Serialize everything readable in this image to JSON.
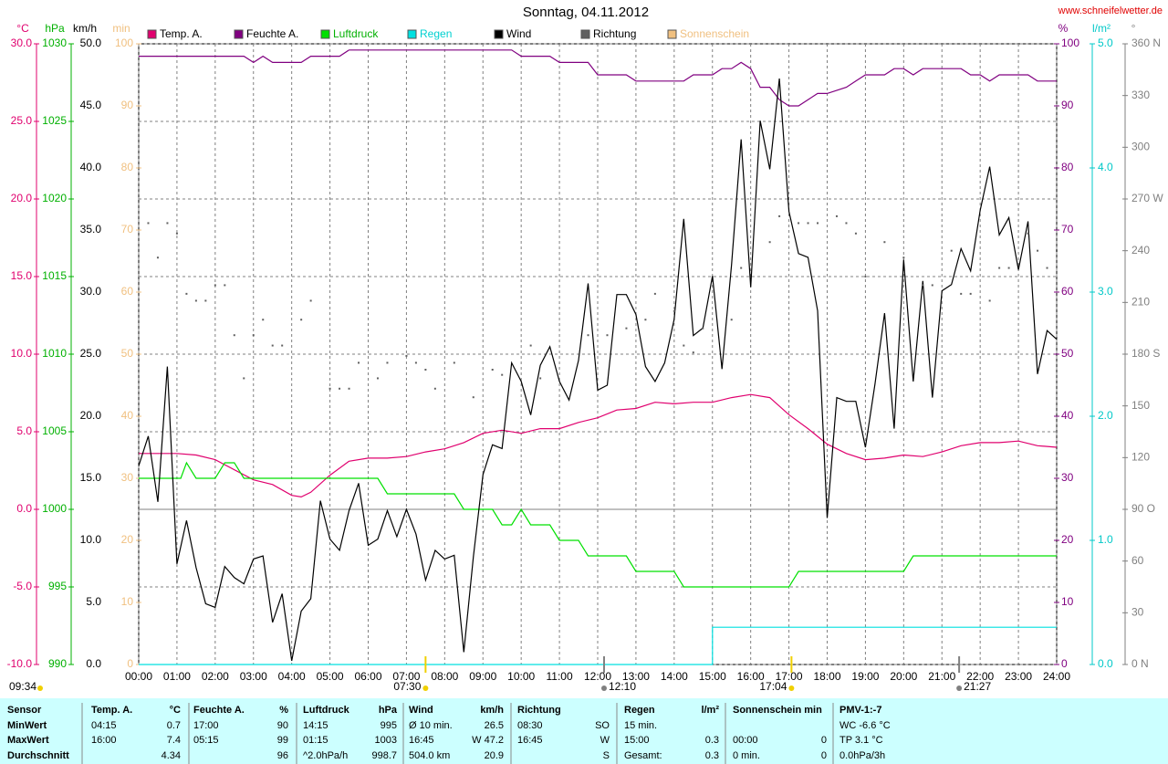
{
  "chart_data": {
    "type": "line",
    "title": "Sonntag, 04.11.2012",
    "source": "www.schneifelwetter.de",
    "xlim": [
      0,
      24
    ],
    "xticks": [
      {
        "value": 0,
        "label": "00:00"
      },
      {
        "value": 1,
        "label": "01:00"
      },
      {
        "value": 2,
        "label": "02:00"
      },
      {
        "value": 3,
        "label": "03:00"
      },
      {
        "value": 4,
        "label": "04:00"
      },
      {
        "value": 5,
        "label": "05:00"
      },
      {
        "value": 6,
        "label": "06:00"
      },
      {
        "value": 7,
        "label": "07:00"
      },
      {
        "value": 8,
        "label": "08:00"
      },
      {
        "value": 9,
        "label": "09:00"
      },
      {
        "value": 10,
        "label": "10:00"
      },
      {
        "value": 11,
        "label": "11:00"
      },
      {
        "value": 12,
        "label": "12:00"
      },
      {
        "value": 13,
        "label": "13:00"
      },
      {
        "value": 14,
        "label": "14:00"
      },
      {
        "value": 15,
        "label": "15:00"
      },
      {
        "value": 16,
        "label": "16:00"
      },
      {
        "value": 17,
        "label": "17:00"
      },
      {
        "value": 18,
        "label": "18:00"
      },
      {
        "value": 19,
        "label": "19:00"
      },
      {
        "value": 20,
        "label": "20:00"
      },
      {
        "value": 21,
        "label": "21:00"
      },
      {
        "value": 22,
        "label": "22:00"
      },
      {
        "value": 23,
        "label": "23:00"
      },
      {
        "value": 24,
        "label": "24:00"
      }
    ],
    "grid": true,
    "axes": {
      "temp": {
        "unit": "°C",
        "color": "#e0006e",
        "ylim": [
          -10,
          30
        ],
        "yticks": [
          {
            "value": -10,
            "label": "-10.0"
          },
          {
            "value": -5,
            "label": "-5.0"
          },
          {
            "value": 0,
            "label": "0.0"
          },
          {
            "value": 5,
            "label": "5.0"
          },
          {
            "value": 10,
            "label": "10.0"
          },
          {
            "value": 15,
            "label": "15.0"
          },
          {
            "value": 20,
            "label": "20.0"
          },
          {
            "value": 25,
            "label": "25.0"
          },
          {
            "value": 30,
            "label": "30.0"
          }
        ]
      },
      "hpa": {
        "unit": "hPa",
        "color": "#00b000",
        "ylim": [
          990,
          1030
        ],
        "yticks": [
          990,
          995,
          1000,
          1005,
          1010,
          1015,
          1020,
          1025,
          1030
        ]
      },
      "kmh": {
        "unit": "km/h",
        "color": "#000000",
        "ylim": [
          0,
          50
        ],
        "yticks": [
          {
            "value": 0,
            "label": "0.0"
          },
          {
            "value": 5,
            "label": "5.0"
          },
          {
            "value": 10,
            "label": "10.0"
          },
          {
            "value": 15,
            "label": "15.0"
          },
          {
            "value": 20,
            "label": "20.0"
          },
          {
            "value": 25,
            "label": "25.0"
          },
          {
            "value": 30,
            "label": "30.0"
          },
          {
            "value": 35,
            "label": "35.0"
          },
          {
            "value": 40,
            "label": "40.0"
          },
          {
            "value": 45,
            "label": "45.0"
          },
          {
            "value": 50,
            "label": "50.0"
          }
        ]
      },
      "min": {
        "unit": "min",
        "color": "#f0c080",
        "ylim": [
          0,
          100
        ],
        "yticks": [
          0,
          10,
          20,
          30,
          40,
          50,
          60,
          70,
          80,
          90,
          100
        ]
      },
      "pct": {
        "unit": "%",
        "color": "#800080",
        "ylim": [
          0,
          100
        ],
        "yticks": [
          0,
          10,
          20,
          30,
          40,
          50,
          60,
          70,
          80,
          90,
          100
        ]
      },
      "lm2": {
        "unit": "l/m²",
        "color": "#00c8c8",
        "ylim": [
          0,
          5
        ],
        "yticks": [
          {
            "value": 0,
            "label": "0.0"
          },
          {
            "value": 1,
            "label": "1.0"
          },
          {
            "value": 2,
            "label": "2.0"
          },
          {
            "value": 3,
            "label": "3.0"
          },
          {
            "value": 4,
            "label": "4.0"
          },
          {
            "value": 5,
            "label": "5.0"
          }
        ]
      },
      "deg": {
        "unit": "°",
        "color": "#808080",
        "ylim": [
          0,
          360
        ],
        "yticks": [
          {
            "value": 0,
            "label": "0 N"
          },
          30,
          60,
          {
            "value": 90,
            "label": "90 O"
          },
          120,
          150,
          {
            "value": 180,
            "label": "180 S"
          },
          210,
          240,
          {
            "value": 270,
            "label": "270 W"
          },
          300,
          330,
          {
            "value": 360,
            "label": "360 N"
          }
        ]
      }
    },
    "series": [
      {
        "name": "Temp. A.",
        "color": "#e0006e",
        "axis": "temp",
        "x": [
          0,
          1,
          1.5,
          2,
          3,
          3.5,
          4,
          4.25,
          4.5,
          5,
          5.5,
          6,
          6.5,
          7,
          7.5,
          8,
          8.5,
          9,
          9.5,
          10,
          10.5,
          11,
          11.5,
          12,
          12.5,
          13,
          13.5,
          14,
          14.5,
          15,
          15.5,
          16,
          16.5,
          17,
          17.5,
          18,
          18.5,
          19,
          19.5,
          20,
          20.5,
          21,
          21.5,
          22,
          22.5,
          23,
          23.5,
          24
        ],
        "values": [
          3.6,
          3.6,
          3.5,
          3.2,
          1.9,
          1.6,
          0.9,
          0.8,
          1.1,
          2.2,
          3.1,
          3.3,
          3.3,
          3.4,
          3.7,
          3.9,
          4.3,
          4.9,
          5.1,
          4.9,
          5.2,
          5.2,
          5.6,
          5.9,
          6.4,
          6.5,
          6.9,
          6.8,
          6.9,
          6.9,
          7.2,
          7.4,
          7.2,
          6.1,
          5.2,
          4.2,
          3.6,
          3.2,
          3.3,
          3.5,
          3.4,
          3.7,
          4.1,
          4.3,
          4.3,
          4.4,
          4.1,
          4.0
        ]
      },
      {
        "name": "Feuchte A.",
        "color": "#800080",
        "axis": "pct",
        "x": [
          0,
          2.75,
          3,
          3.25,
          3.5,
          4.25,
          4.5,
          5.25,
          5.5,
          9.75,
          10,
          10.75,
          11,
          11.75,
          12,
          12.75,
          13,
          14.25,
          14.5,
          15,
          15.25,
          15.5,
          15.75,
          16,
          16.25,
          16.5,
          16.75,
          17,
          17.25,
          17.5,
          17.75,
          18,
          18.5,
          18.75,
          19,
          19.5,
          19.75,
          20,
          20.25,
          20.5,
          21.5,
          21.75,
          22,
          22.25,
          22.5,
          23.25,
          23.5,
          24
        ],
        "values": [
          98,
          98,
          97,
          98,
          97,
          97,
          98,
          98,
          99,
          99,
          98,
          98,
          97,
          97,
          95,
          95,
          94,
          94,
          95,
          95,
          96,
          96,
          97,
          96,
          93,
          93,
          91,
          90,
          90,
          91,
          92,
          92,
          93,
          94,
          95,
          95,
          96,
          96,
          95,
          96,
          96,
          95,
          95,
          94,
          95,
          95,
          94,
          94
        ]
      },
      {
        "name": "Luftdruck",
        "color": "#00e000",
        "axis": "hpa",
        "x": [
          0,
          1.1,
          1.25,
          1.5,
          2,
          2.25,
          2.5,
          2.75,
          6.25,
          6.5,
          8.25,
          8.5,
          9.25,
          9.5,
          9.75,
          10,
          10.25,
          10.75,
          11,
          11.5,
          11.75,
          12.75,
          13,
          14,
          14.25,
          17,
          17.25,
          20,
          20.25,
          24
        ],
        "values": [
          1002,
          1002,
          1003,
          1002,
          1002,
          1003,
          1003,
          1002,
          1002,
          1001,
          1001,
          1000,
          1000,
          999,
          999,
          1000,
          999,
          999,
          998,
          998,
          997,
          997,
          996,
          996,
          995,
          995,
          996,
          996,
          997,
          997
        ]
      },
      {
        "name": "Regen",
        "color": "#00e0e0",
        "axis": "lm2",
        "x": [
          0,
          14.8,
          15,
          15,
          24
        ],
        "values": [
          0,
          0,
          0,
          0.3,
          0.3
        ]
      },
      {
        "name": "Wind",
        "color": "#000000",
        "axis": "kmh",
        "x": [
          0,
          0.25,
          0.5,
          0.75,
          1,
          1.25,
          1.5,
          1.75,
          2,
          2.25,
          2.5,
          2.75,
          3,
          3.25,
          3.5,
          3.75,
          4,
          4.25,
          4.5,
          4.75,
          5,
          5.25,
          5.5,
          5.75,
          6,
          6.25,
          6.5,
          6.75,
          7,
          7.25,
          7.5,
          7.75,
          8,
          8.25,
          8.5,
          8.75,
          9,
          9.25,
          9.5,
          9.75,
          10,
          10.25,
          10.5,
          10.75,
          11,
          11.25,
          11.5,
          11.75,
          12,
          12.25,
          12.5,
          12.75,
          13,
          13.25,
          13.5,
          13.75,
          14,
          14.25,
          14.5,
          14.75,
          15,
          15.25,
          15.5,
          15.75,
          16,
          16.25,
          16.5,
          16.75,
          17,
          17.25,
          17.5,
          17.75,
          18,
          18.25,
          18.5,
          18.75,
          19,
          19.25,
          19.5,
          19.75,
          20,
          20.25,
          20.5,
          20.75,
          21,
          21.25,
          21.5,
          21.75,
          22,
          22.25,
          22.5,
          22.75,
          23,
          23.25,
          23.5,
          23.75,
          24
        ],
        "values": [
          16.0,
          18.4,
          13.1,
          24.0,
          8.1,
          11.6,
          7.8,
          4.9,
          4.6,
          7.9,
          7.0,
          6.5,
          8.5,
          8.75,
          3.4,
          5.7,
          0.3,
          4.3,
          5.3,
          13.2,
          10.1,
          9.2,
          12.4,
          14.6,
          9.6,
          10.1,
          12.4,
          10.3,
          12.5,
          10.5,
          6.8,
          9.2,
          8.5,
          8.8,
          1.0,
          8.7,
          15.3,
          17.7,
          17.4,
          24.3,
          22.8,
          20.1,
          24.1,
          25.6,
          22.8,
          21.3,
          24.5,
          30.7,
          22.1,
          22.5,
          29.8,
          29.8,
          28.2,
          24.0,
          22.8,
          24.3,
          27.8,
          35.9,
          26.5,
          27.1,
          31.3,
          23.8,
          32.2,
          42.3,
          30.4,
          43.8,
          39.9,
          47.2,
          36.5,
          33.1,
          32.8,
          28.5,
          11.8,
          21.5,
          21.2,
          21.2,
          17.5,
          22.6,
          28.3,
          19.0,
          32.6,
          22.8,
          30.9,
          21.5,
          30.1,
          30.6,
          33.5,
          31.7,
          36.6,
          40.1,
          34.6,
          36.0,
          31.8,
          35.7,
          23.4,
          26.9,
          26.2
        ]
      },
      {
        "name": "Richtung",
        "color": "#606060",
        "axis": "deg",
        "dots": true,
        "x": [
          0.25,
          0.5,
          0.75,
          1,
          1.25,
          1.5,
          1.75,
          2,
          2.25,
          2.5,
          2.75,
          3,
          3.25,
          3.5,
          3.75,
          4.25,
          4.5,
          5,
          5.25,
          5.5,
          5.75,
          6.25,
          6.5,
          7,
          7.25,
          7.5,
          7.75,
          8.25,
          8.75,
          9.25,
          9.5,
          10.25,
          10.5,
          11.75,
          12.25,
          12.75,
          13.25,
          13.5,
          14,
          14.25,
          14.5,
          14.75,
          15.5,
          15.75,
          16.5,
          16.75,
          17.25,
          17.5,
          17.75,
          18.25,
          18.5,
          18.75,
          19,
          19.5,
          20,
          20.5,
          20.75,
          21.25,
          21.5,
          21.75,
          22.25,
          22.5,
          22.75,
          23.25,
          23.5,
          23.75,
          24
        ],
        "values": [
          256,
          236,
          256,
          250,
          215,
          211,
          211,
          220,
          220,
          191,
          166,
          191,
          200,
          185,
          185,
          200,
          211,
          160,
          160,
          160,
          175,
          166,
          175,
          179,
          175,
          171,
          160,
          175,
          155,
          171,
          168,
          185,
          166,
          191,
          191,
          195,
          200,
          215,
          205,
          185,
          181,
          195,
          200,
          230,
          245,
          260,
          256,
          256,
          256,
          260,
          256,
          250,
          225,
          245,
          236,
          220,
          220,
          240,
          215,
          215,
          211,
          230,
          230,
          250,
          240,
          230,
          240
        ]
      },
      {
        "name": "Sonnenschein",
        "color": "#f0c080",
        "axis": "min",
        "x": [],
        "values": []
      }
    ],
    "left_note": "09:34",
    "markers": [
      {
        "text": "07:30",
        "color": "#f0d000"
      },
      {
        "text": "12:10",
        "color": "#808080"
      },
      {
        "text": "17:04",
        "color": "#f0d000"
      },
      {
        "text": "21:27",
        "color": "#808080"
      }
    ]
  },
  "table": {
    "header": [
      "Sensor",
      "Temp. A.",
      "°C",
      "Feuchte A.",
      "%",
      "Luftdruck",
      "hPa",
      "Wind",
      "km/h",
      "Richtung",
      null,
      "Regen",
      "l/m²",
      "Sonnenschein min",
      null,
      "PMV-1:-7",
      null
    ],
    "rows": [
      {
        "label": "MinWert",
        "cells": [
          "04:15",
          "0.7",
          "17:00",
          "90",
          "14:15",
          "995",
          "Ø 10 min.",
          "26.5",
          "08:30",
          "SO",
          "15 min.",
          null,
          null,
          null,
          "WC -6.6 °C",
          null
        ]
      },
      {
        "label": "MaxWert",
        "cells": [
          "16:00",
          "7.4",
          "05:15",
          "99",
          "01:15",
          "1003",
          "16:45",
          "W 47.2",
          "16:45",
          "W",
          "15:00",
          "0.3",
          "00:00",
          "0",
          "TP 3.1 °C",
          null
        ]
      },
      {
        "label": "Durchschnitt",
        "cells": [
          null,
          "4.34",
          null,
          "96",
          "^2.0hPa/h",
          "998.7",
          "504.0 km",
          "20.9",
          null,
          "S",
          "Gesamt:",
          "0.3",
          "0 min.",
          "0",
          "0.0hPa/3h",
          null
        ]
      }
    ]
  }
}
